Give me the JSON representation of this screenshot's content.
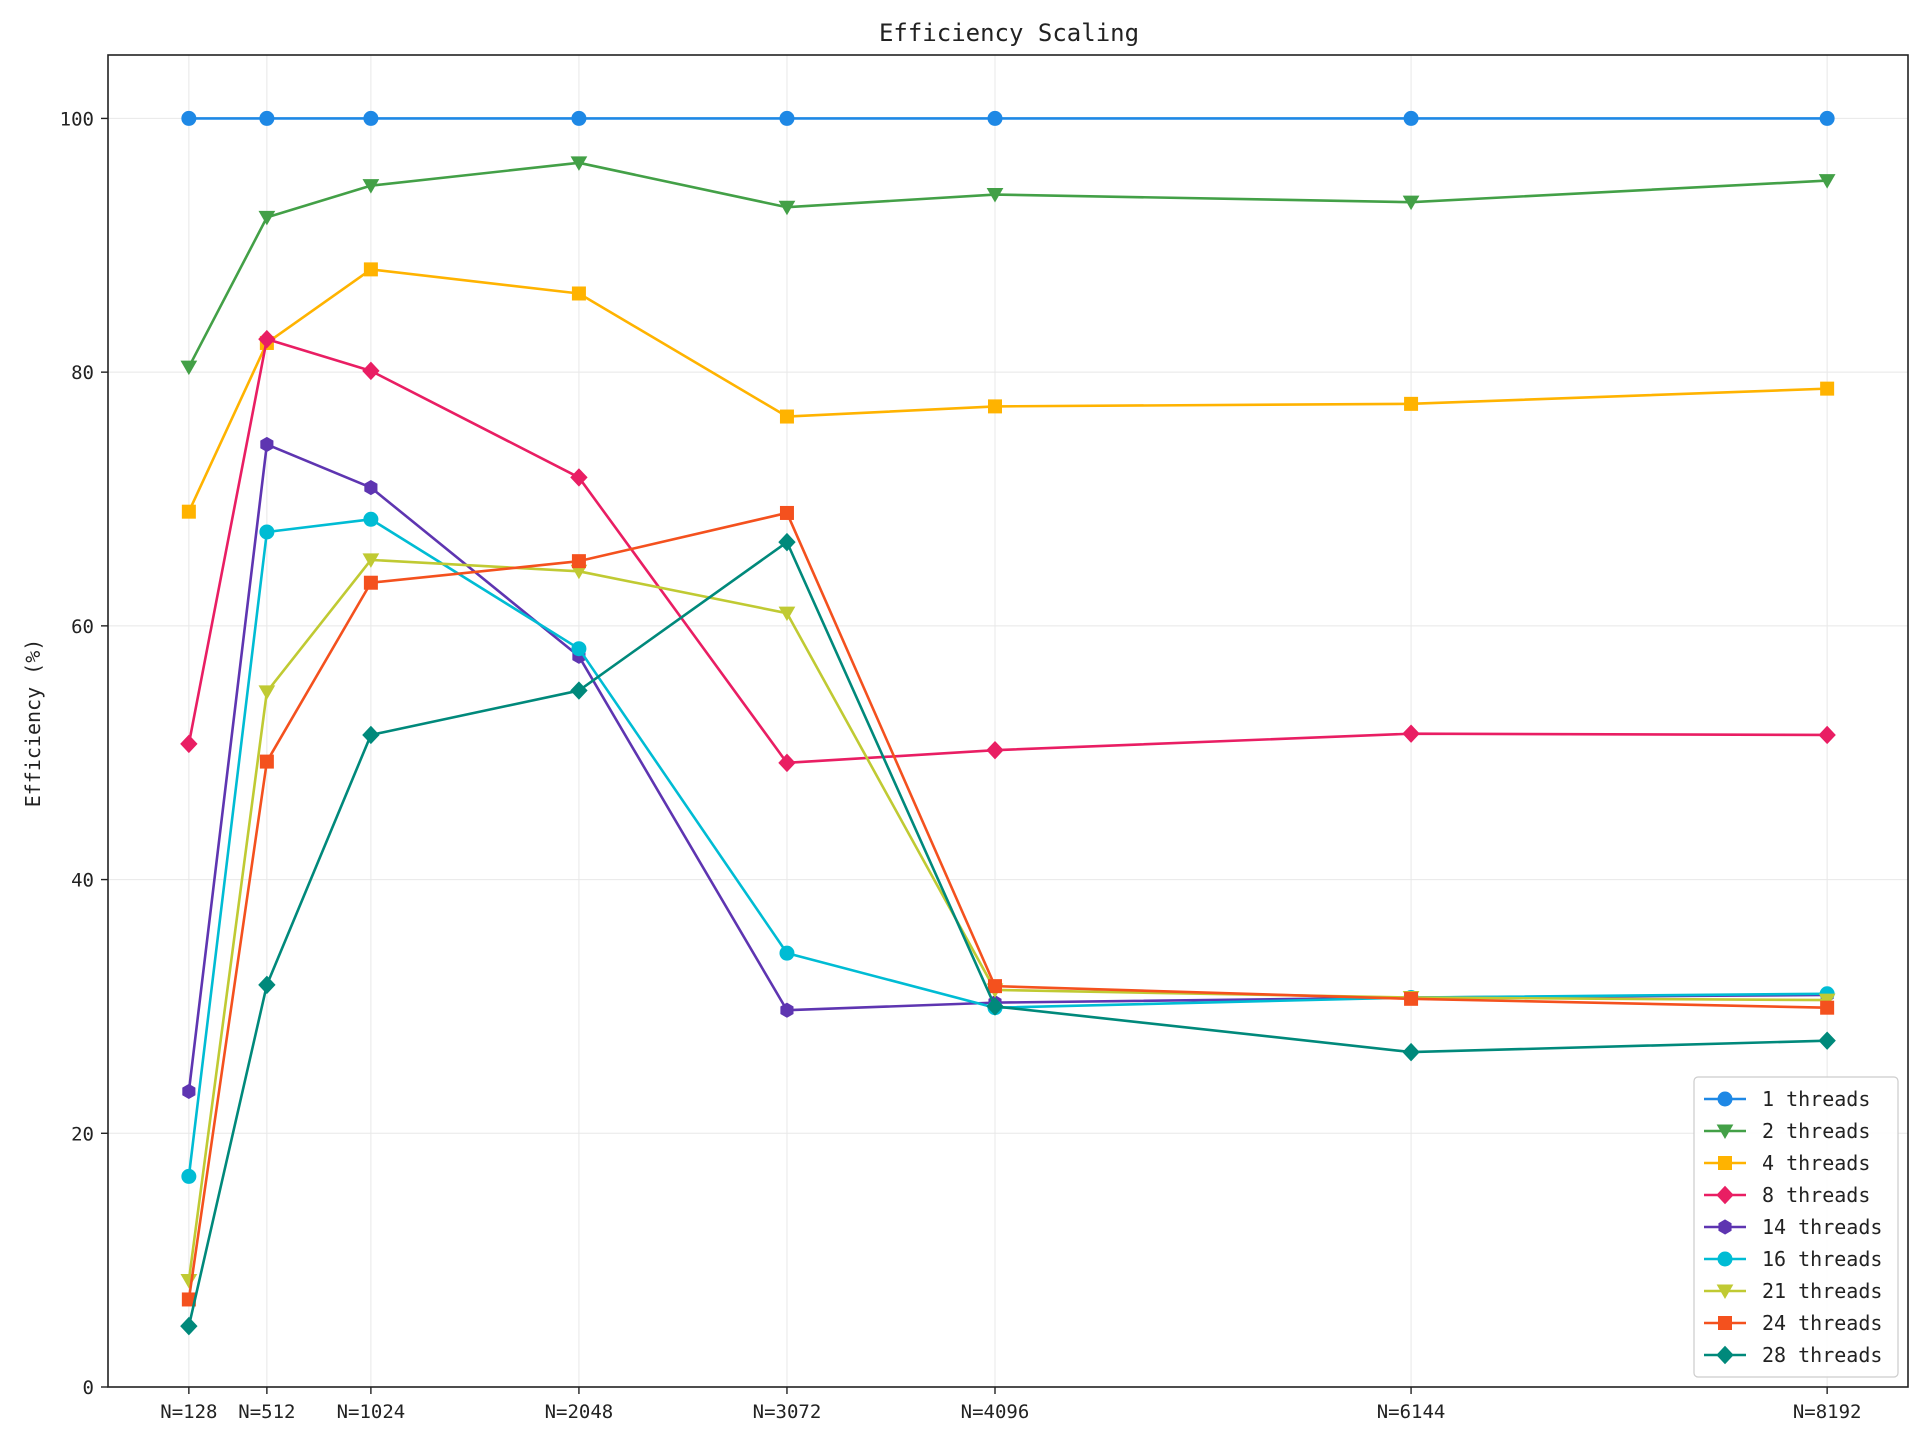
{
  "chart_data": {
    "type": "line",
    "title": "Efficiency Scaling",
    "xlabel": "",
    "ylabel": "Efficiency (%)",
    "x_values": [
      128,
      512,
      1024,
      2048,
      3072,
      4096,
      6144,
      8192
    ],
    "x_tick_labels": [
      "N=128",
      "N=512",
      "N=1024",
      "N=2048",
      "N=3072",
      "N=4096",
      "N=6144",
      "N=8192"
    ],
    "xlim": [
      -270,
      8590
    ],
    "ylim": [
      0,
      105
    ],
    "y_ticks": [
      0,
      20,
      40,
      60,
      80,
      100
    ],
    "grid": true,
    "legend_position": "bottom-right",
    "series": [
      {
        "name": "1 threads",
        "color": "#1e88e5",
        "marker": "circle",
        "values": [
          100,
          100,
          100,
          100,
          100,
          100,
          100,
          100
        ]
      },
      {
        "name": "2 threads",
        "color": "#43a047",
        "marker": "triangle-down",
        "values": [
          80.4,
          92.2,
          94.7,
          96.5,
          93.0,
          94.0,
          93.4,
          95.1
        ]
      },
      {
        "name": "4 threads",
        "color": "#ffb300",
        "marker": "square",
        "values": [
          69.0,
          82.3,
          88.1,
          86.2,
          76.5,
          77.3,
          77.5,
          78.7
        ]
      },
      {
        "name": "8 threads",
        "color": "#e91e63",
        "marker": "diamond",
        "values": [
          50.7,
          82.6,
          80.1,
          71.7,
          49.2,
          50.2,
          51.5,
          51.4
        ]
      },
      {
        "name": "14 threads",
        "color": "#5e35b1",
        "marker": "hexagon",
        "values": [
          23.3,
          74.3,
          70.9,
          57.6,
          29.7,
          30.3,
          30.7,
          30.9
        ]
      },
      {
        "name": "16 threads",
        "color": "#00bcd4",
        "marker": "circle",
        "values": [
          16.6,
          67.4,
          68.4,
          58.2,
          34.2,
          29.9,
          30.7,
          31.0
        ]
      },
      {
        "name": "21 threads",
        "color": "#c0ca33",
        "marker": "triangle-down",
        "values": [
          8.4,
          54.8,
          65.2,
          64.3,
          61.0,
          31.3,
          30.7,
          30.5
        ]
      },
      {
        "name": "24 threads",
        "color": "#f4511e",
        "marker": "square",
        "values": [
          6.9,
          49.3,
          63.4,
          65.1,
          68.9,
          31.6,
          30.6,
          29.9
        ]
      },
      {
        "name": "28 threads",
        "color": "#00897b",
        "marker": "diamond",
        "values": [
          4.8,
          31.7,
          51.4,
          54.9,
          66.6,
          30.0,
          26.4,
          27.3
        ]
      }
    ]
  }
}
